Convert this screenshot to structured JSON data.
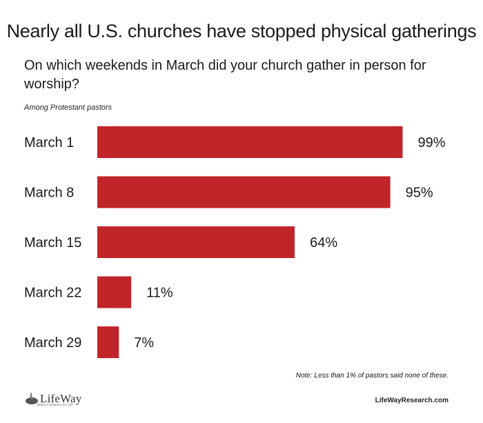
{
  "title": "Nearly all U.S. churches have stopped physical gatherings",
  "question": "On which weekends in March did your church gather in person for worship?",
  "subtitle": "Among Protestant pastors",
  "note": "Note: Less than 1% of pastors said none of these.",
  "logo": {
    "word": "LifeWay",
    "tagline": "Biblical Solutions for Life",
    "icon": "lifeway-flame-icon"
  },
  "site": "LifeWayResearch.com",
  "colors": {
    "bar": "#c0252a",
    "text": "#1a1a1a"
  },
  "chart_data": {
    "type": "bar",
    "orientation": "horizontal",
    "categories": [
      "March 1",
      "March 8",
      "March 15",
      "March 22",
      "March 29"
    ],
    "values": [
      99,
      95,
      64,
      11,
      7
    ],
    "value_labels": [
      "99%",
      "95%",
      "64%",
      "11%",
      "7%"
    ],
    "unit": "%",
    "xlim": [
      0,
      100
    ],
    "grid": false,
    "legend": "none",
    "title": "Nearly all U.S. churches have stopped physical gatherings",
    "xlabel": "",
    "ylabel": ""
  }
}
